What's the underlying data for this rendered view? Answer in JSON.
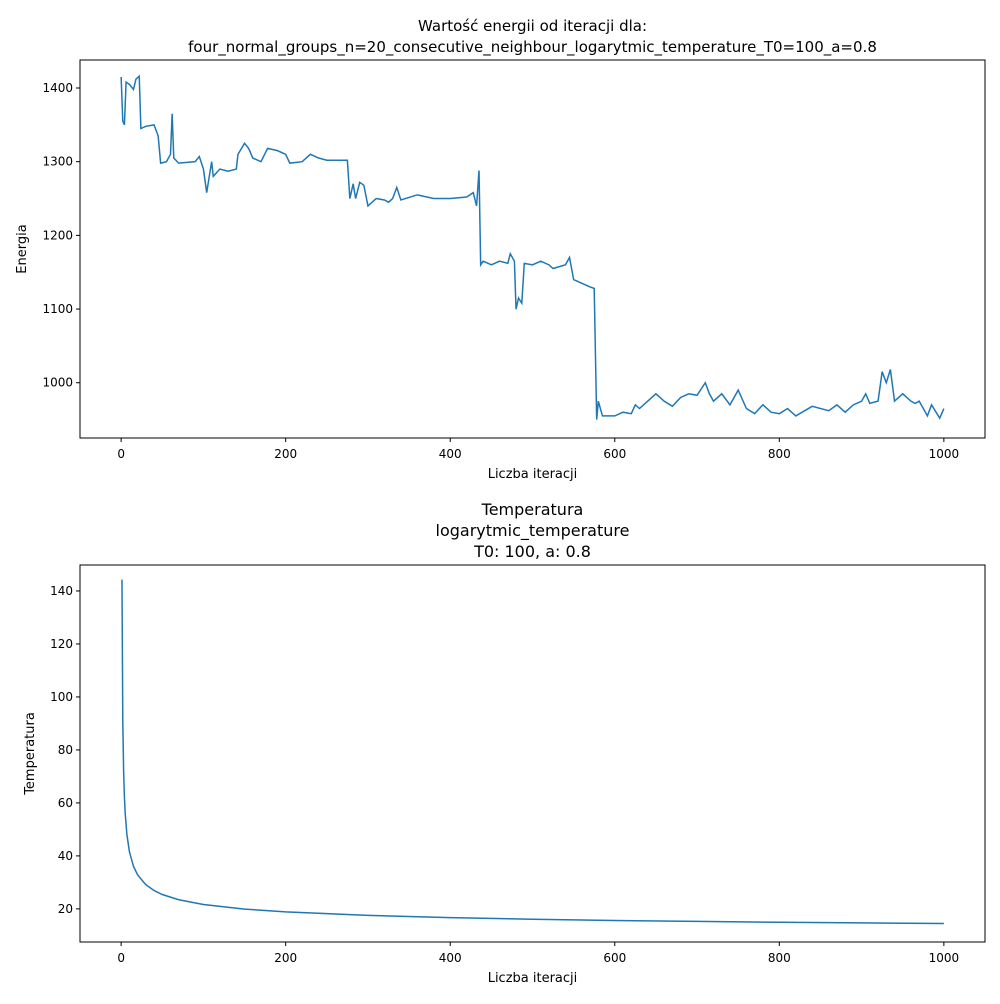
{
  "chart_data": [
    {
      "type": "line",
      "title": [
        "Wartość energii od iteracji dla:",
        "four_normal_groups_n=20_consecutive_neighbour_logarytmic_temperature_T0=100_a=0.8"
      ],
      "xlabel": "Liczba iteracji",
      "ylabel": "Energia",
      "xlim": [
        -50,
        1050
      ],
      "ylim": [
        925,
        1438
      ],
      "xticks": [
        0,
        200,
        400,
        600,
        800,
        1000
      ],
      "yticks": [
        1000,
        1100,
        1200,
        1300,
        1400
      ],
      "grid": false,
      "x": [
        0,
        2,
        4,
        6,
        10,
        15,
        18,
        22,
        24,
        30,
        40,
        45,
        48,
        55,
        60,
        62,
        64,
        70,
        90,
        95,
        100,
        104,
        110,
        112,
        120,
        130,
        140,
        142,
        150,
        155,
        160,
        170,
        178,
        190,
        200,
        205,
        220,
        230,
        240,
        250,
        260,
        275,
        278,
        282,
        285,
        290,
        295,
        300,
        310,
        320,
        325,
        330,
        335,
        340,
        360,
        380,
        400,
        420,
        428,
        432,
        435,
        437,
        440,
        450,
        460,
        470,
        473,
        478,
        480,
        483,
        487,
        490,
        500,
        510,
        520,
        525,
        540,
        545,
        550,
        560,
        570,
        575,
        578,
        580,
        585,
        600,
        610,
        620,
        625,
        630,
        640,
        650,
        660,
        670,
        680,
        690,
        700,
        710,
        715,
        720,
        730,
        740,
        750,
        760,
        770,
        780,
        790,
        800,
        810,
        820,
        840,
        860,
        870,
        880,
        890,
        900,
        905,
        910,
        920,
        925,
        930,
        935,
        940,
        950,
        960,
        965,
        970,
        980,
        985,
        995,
        1000
      ],
      "series": [
        {
          "name": "Energia",
          "color": "#1f77b4",
          "values": [
            1415,
            1355,
            1350,
            1408,
            1405,
            1398,
            1412,
            1416,
            1345,
            1348,
            1350,
            1335,
            1298,
            1300,
            1310,
            1365,
            1305,
            1298,
            1300,
            1307,
            1290,
            1258,
            1300,
            1280,
            1290,
            1287,
            1290,
            1310,
            1325,
            1318,
            1305,
            1300,
            1318,
            1315,
            1310,
            1298,
            1300,
            1310,
            1305,
            1302,
            1302,
            1302,
            1250,
            1270,
            1250,
            1272,
            1268,
            1240,
            1250,
            1248,
            1245,
            1250,
            1265,
            1248,
            1255,
            1250,
            1250,
            1252,
            1258,
            1240,
            1288,
            1160,
            1165,
            1160,
            1165,
            1162,
            1175,
            1165,
            1100,
            1115,
            1108,
            1162,
            1160,
            1165,
            1160,
            1155,
            1160,
            1170,
            1140,
            1135,
            1130,
            1128,
            950,
            975,
            955,
            955,
            960,
            958,
            970,
            965,
            975,
            985,
            975,
            968,
            980,
            985,
            983,
            1000,
            985,
            975,
            985,
            970,
            990,
            965,
            958,
            970,
            960,
            958,
            965,
            955,
            968,
            962,
            970,
            960,
            970,
            975,
            985,
            972,
            975,
            1015,
            1000,
            1018,
            975,
            985,
            975,
            972,
            975,
            955,
            970,
            952,
            965
          ]
        }
      ]
    },
    {
      "type": "line",
      "title": [
        "Temperatura",
        "logarytmic_temperature",
        "T0: 100, a: 0.8"
      ],
      "xlabel": "Liczba iteracji",
      "ylabel": "Temperatura",
      "xlim": [
        -50,
        1050
      ],
      "ylim": [
        7.5,
        149.8
      ],
      "xticks": [
        0,
        200,
        400,
        600,
        800,
        1000
      ],
      "yticks": [
        20,
        40,
        60,
        80,
        100,
        120,
        140
      ],
      "grid": false,
      "x": [
        1,
        2,
        3,
        4,
        5,
        7,
        10,
        15,
        20,
        30,
        40,
        50,
        70,
        100,
        150,
        200,
        300,
        400,
        500,
        600,
        700,
        800,
        900,
        1000
      ],
      "series": [
        {
          "name": "Temperatura",
          "color": "#1f77b4",
          "values": [
            144.27,
            91.02,
            72.13,
            62.13,
            55.81,
            48.09,
            41.7,
            36.07,
            32.85,
            29.12,
            26.93,
            25.43,
            23.46,
            21.67,
            19.93,
            18.87,
            17.53,
            16.69,
            16.09,
            15.63,
            15.27,
            14.96,
            14.7,
            14.47
          ]
        }
      ]
    }
  ]
}
